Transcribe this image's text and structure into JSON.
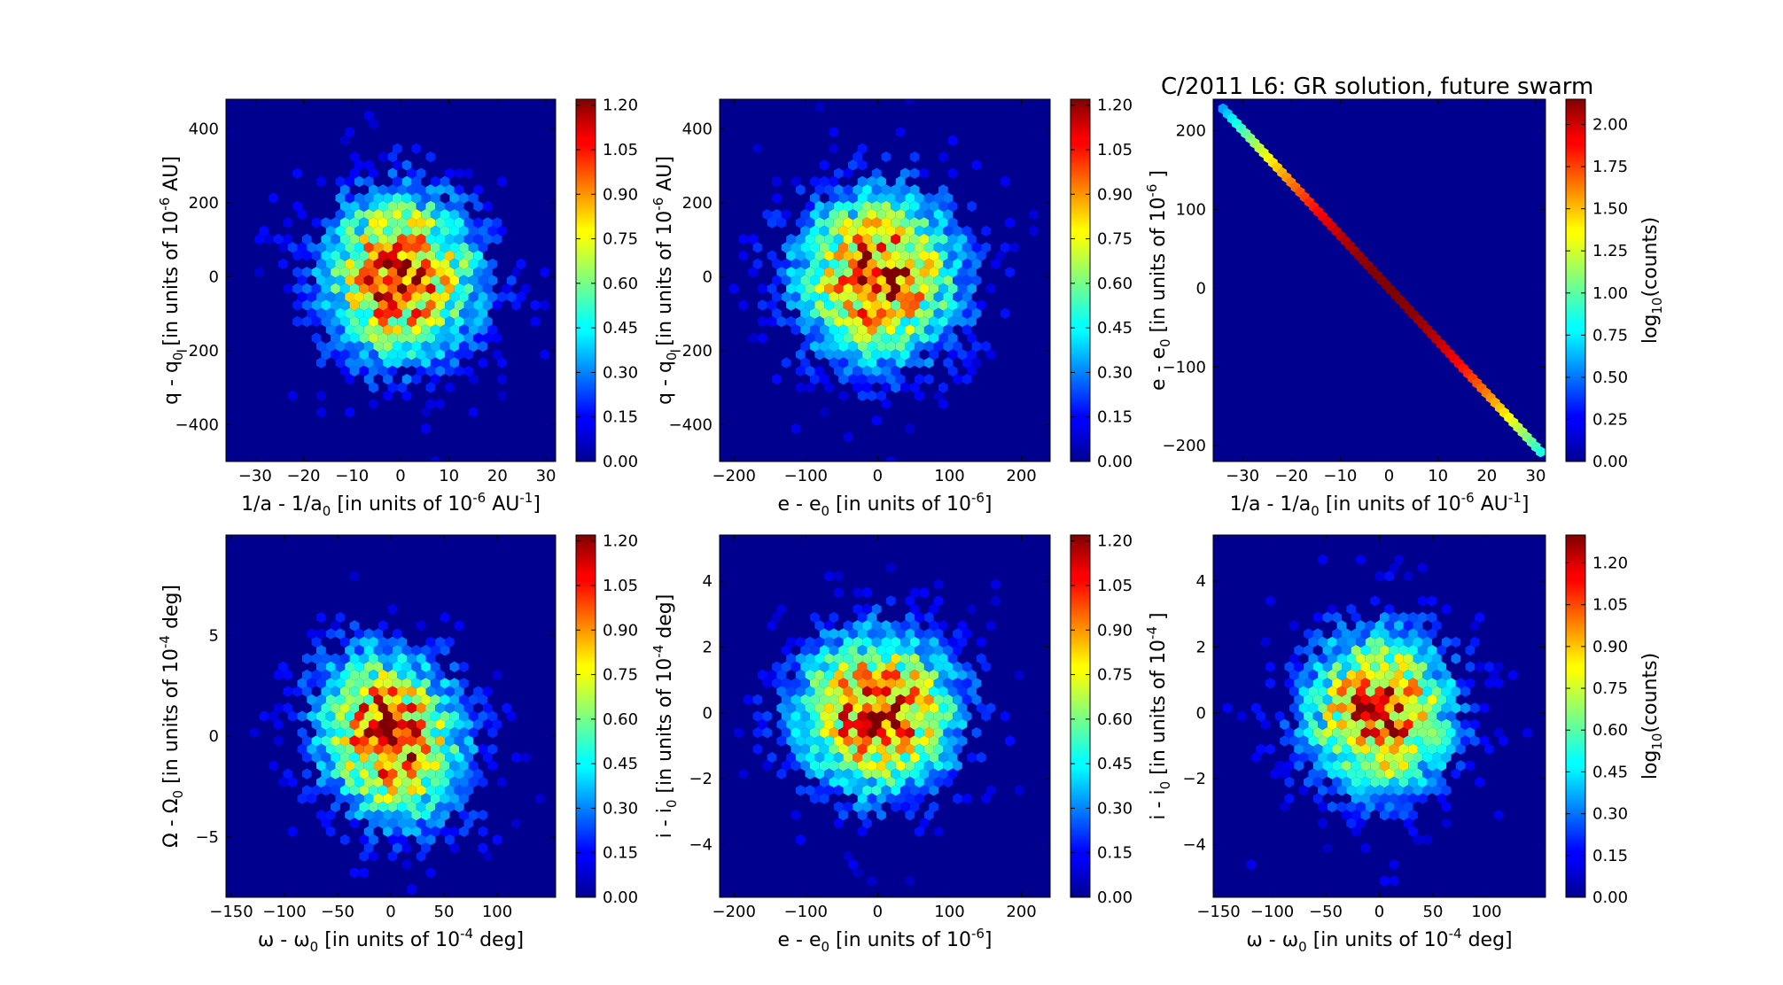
{
  "figure": {
    "title": "C/2011 L6:  GR solution, future swarm",
    "colormap": "jet"
  },
  "chart_data": [
    {
      "type": "heatmap",
      "subtype": "hexbin",
      "xlabel": "1/a - 1/a0 [in units of 10^-6 AU^-1]",
      "ylabel": "q - q0 [in units of 10^-6 AU]",
      "xlim": [
        -36,
        32
      ],
      "ylim": [
        -500,
        480
      ],
      "xticks": [
        -30,
        -20,
        -10,
        0,
        10,
        20,
        30
      ],
      "yticks": [
        -400,
        -200,
        0,
        200,
        400
      ],
      "distribution": {
        "kind": "gaussian",
        "sigma_x": 10,
        "sigma_y": 140,
        "rho": 0,
        "peak": 1.22
      },
      "colorbar": {
        "range": [
          0,
          1.22
        ],
        "ticks": [
          "0.00",
          "0.15",
          "0.30",
          "0.45",
          "0.60",
          "0.75",
          "0.90",
          "1.05",
          "1.20"
        ],
        "label": ""
      }
    },
    {
      "type": "heatmap",
      "subtype": "hexbin",
      "xlabel": "e - e0 [in units of 10^-6]",
      "ylabel": "q - q0 [in units of 10^-6 AU]",
      "xlim": [
        -220,
        240
      ],
      "ylim": [
        -500,
        480
      ],
      "xticks": [
        -200,
        -100,
        0,
        100,
        200
      ],
      "yticks": [
        -400,
        -200,
        0,
        200,
        400
      ],
      "distribution": {
        "kind": "gaussian",
        "sigma_x": 70,
        "sigma_y": 140,
        "rho": 0,
        "peak": 1.22
      },
      "colorbar": {
        "range": [
          0,
          1.22
        ],
        "ticks": [
          "0.00",
          "0.15",
          "0.30",
          "0.45",
          "0.60",
          "0.75",
          "0.90",
          "1.05",
          "1.20"
        ],
        "label": ""
      }
    },
    {
      "type": "heatmap",
      "subtype": "hexbin",
      "xlabel": "1/a - 1/a0 [in units of 10^-6 AU^-1]",
      "ylabel": "e - e0 [in units of 10^-6 ]",
      "xlim": [
        -36,
        32
      ],
      "ylim": [
        -220,
        240
      ],
      "xticks": [
        -30,
        -20,
        -10,
        0,
        10,
        20,
        30
      ],
      "yticks": [
        -200,
        -100,
        0,
        100,
        200
      ],
      "distribution": {
        "kind": "line",
        "x_range": [
          -34,
          31
        ],
        "slope": -6.7,
        "peak": 2.15
      },
      "colorbar": {
        "range": [
          0,
          2.15
        ],
        "ticks": [
          "0.00",
          "0.25",
          "0.50",
          "0.75",
          "1.00",
          "1.25",
          "1.50",
          "1.75",
          "2.00"
        ],
        "label": "log10(counts)"
      }
    },
    {
      "type": "heatmap",
      "subtype": "hexbin",
      "xlabel": "ω - ω0 [in units of 10^-4 deg]",
      "ylabel": "Ω - Ω0 [in units of 10^-4 deg]",
      "xlim": [
        -155,
        155
      ],
      "ylim": [
        -8,
        10
      ],
      "xticks": [
        -150,
        -100,
        -50,
        0,
        50,
        100
      ],
      "yticks": [
        -5,
        0,
        5
      ],
      "distribution": {
        "kind": "gaussian",
        "sigma_x": 42,
        "sigma_y": 2.6,
        "rho": -0.15,
        "peak": 1.22
      },
      "colorbar": {
        "range": [
          0,
          1.22
        ],
        "ticks": [
          "0.00",
          "0.15",
          "0.30",
          "0.45",
          "0.60",
          "0.75",
          "0.90",
          "1.05",
          "1.20"
        ],
        "label": ""
      }
    },
    {
      "type": "heatmap",
      "subtype": "hexbin",
      "xlabel": "e - e0 [in units of 10^-6]",
      "ylabel": "i - i0 [in units of 10^-4 deg]",
      "xlim": [
        -220,
        240
      ],
      "ylim": [
        -5.6,
        5.4
      ],
      "xticks": [
        -200,
        -100,
        0,
        100,
        200
      ],
      "yticks": [
        -4,
        -2,
        0,
        2,
        4
      ],
      "distribution": {
        "kind": "gaussian",
        "sigma_x": 70,
        "sigma_y": 1.5,
        "rho": 0,
        "peak": 1.22
      },
      "colorbar": {
        "range": [
          0,
          1.22
        ],
        "ticks": [
          "0.00",
          "0.15",
          "0.30",
          "0.45",
          "0.60",
          "0.75",
          "0.90",
          "1.05",
          "1.20"
        ],
        "label": ""
      }
    },
    {
      "type": "heatmap",
      "subtype": "hexbin",
      "xlabel": "ω - ω0 [in units of 10^-4 deg]",
      "ylabel": "i - i0 [in units of 10^-4 ]",
      "xlim": [
        -155,
        155
      ],
      "ylim": [
        -5.6,
        5.4
      ],
      "xticks": [
        -150,
        -100,
        -50,
        0,
        50,
        100
      ],
      "yticks": [
        -4,
        -2,
        0,
        2,
        4
      ],
      "distribution": {
        "kind": "gaussian",
        "sigma_x": 42,
        "sigma_y": 1.5,
        "rho": 0,
        "peak": 1.3
      },
      "colorbar": {
        "range": [
          0,
          1.3
        ],
        "ticks": [
          "0.00",
          "0.15",
          "0.30",
          "0.45",
          "0.60",
          "0.75",
          "0.90",
          "1.05",
          "1.20"
        ],
        "label": "log10(counts)"
      }
    }
  ]
}
